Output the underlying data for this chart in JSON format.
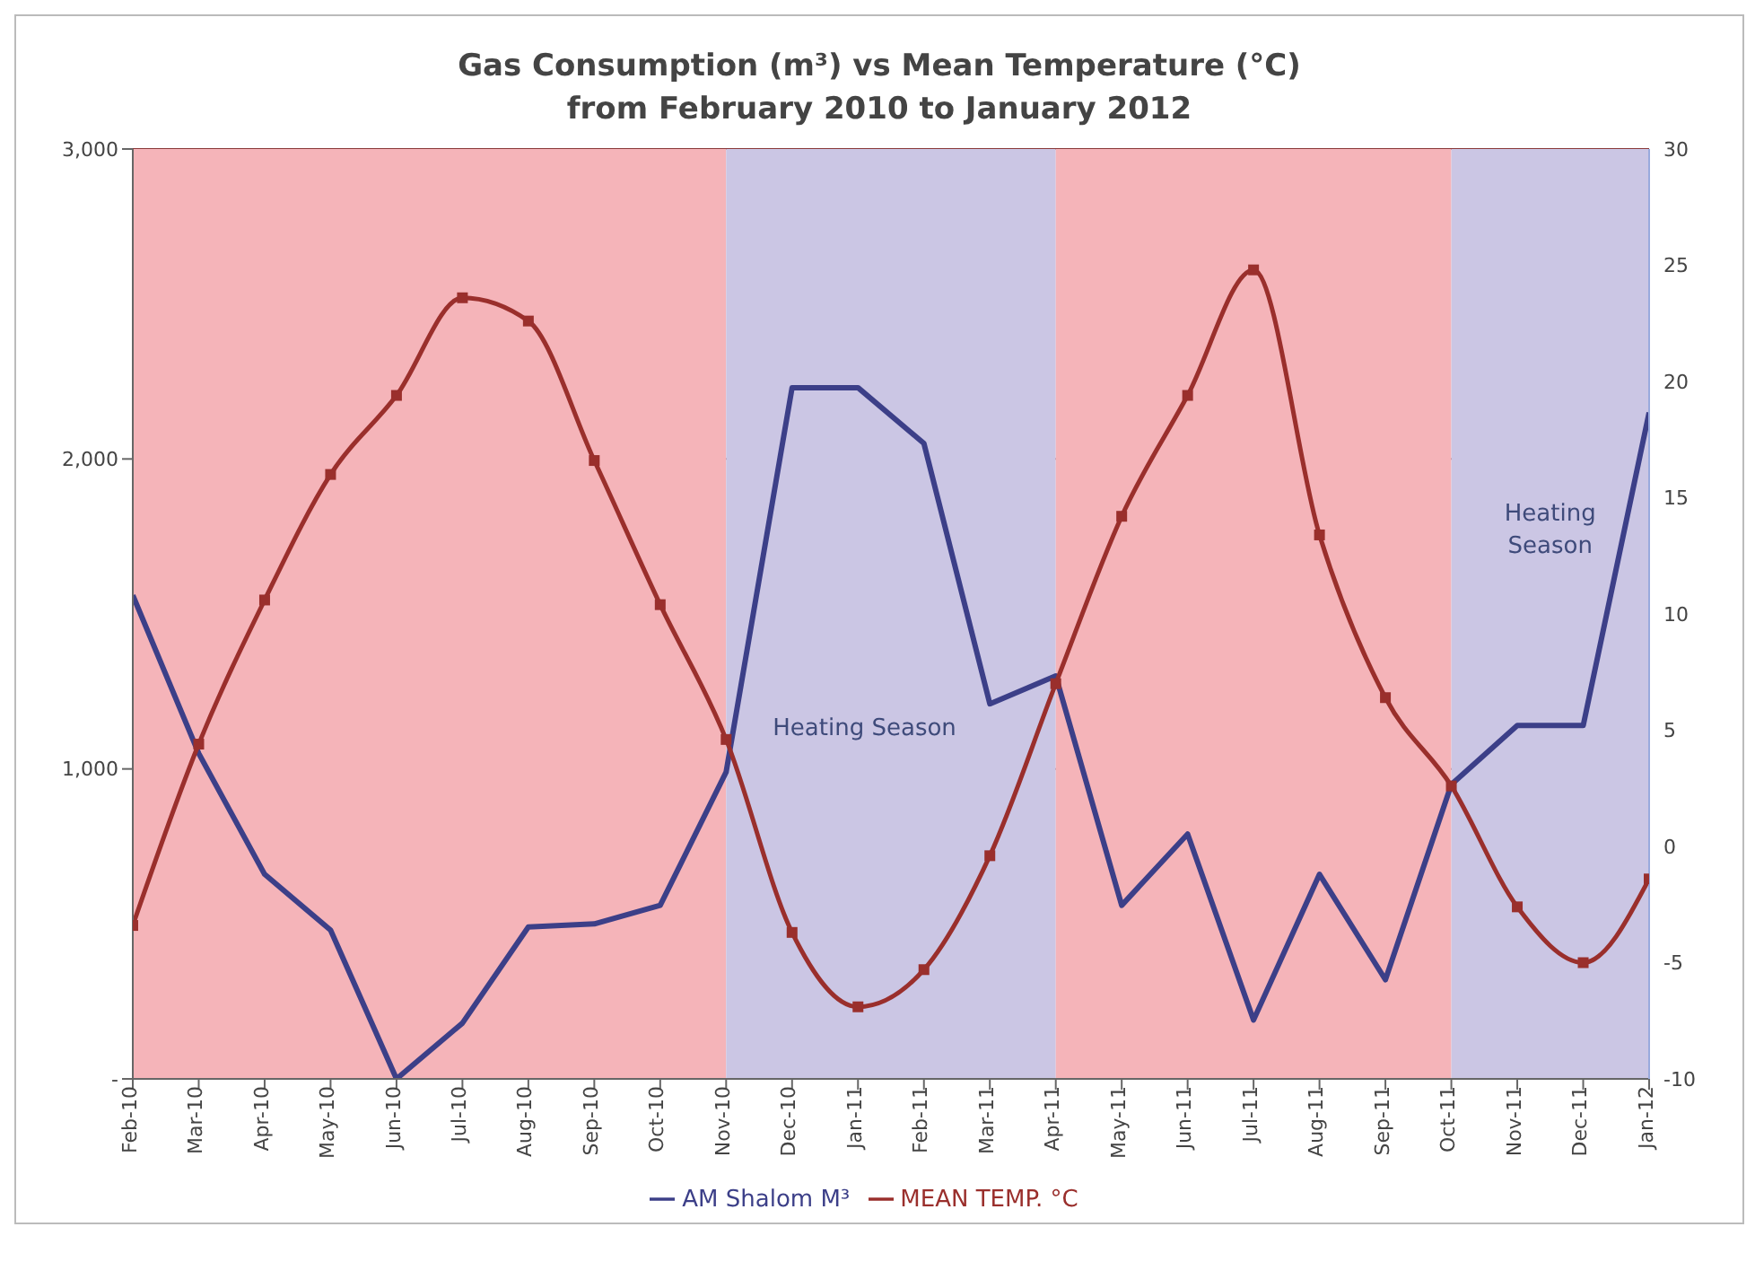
{
  "chart_data": {
    "type": "line",
    "title": "Gas Consumption (m³) vs Mean Temperature (°C)",
    "subtitle": "from February 2010 to January 2012",
    "categories": [
      "Feb-10",
      "Mar-10",
      "Apr-10",
      "May-10",
      "Jun-10",
      "Jul-10",
      "Aug-10",
      "Sep-10",
      "Oct-10",
      "Nov-10",
      "Dec-10",
      "Jan-11",
      "Feb-11",
      "Mar-11",
      "Apr-11",
      "May-11",
      "Jun-11",
      "Jul-11",
      "Aug-11",
      "Sep-11",
      "Oct-11",
      "Nov-11",
      "Dec-11",
      "Jan-12"
    ],
    "series": [
      {
        "name": "AM Shalom M³",
        "color": "#3c3f88",
        "marker": "none",
        "values": [
          1560,
          1050,
          660,
          480,
          0,
          180,
          490,
          500,
          560,
          990,
          2230,
          2230,
          2050,
          1210,
          1300,
          560,
          790,
          190,
          660,
          320,
          950,
          1140,
          1140,
          2150
        ]
      },
      {
        "name": "MEAN TEMP. °C",
        "color": "#9a2f2c",
        "marker": "square",
        "axis": "y2",
        "values": [
          -3.4,
          4.4,
          10.6,
          16,
          19.4,
          23.6,
          22.6,
          16.6,
          10.4,
          4.6,
          -3.7,
          -6.9,
          -5.3,
          -0.4,
          7,
          14.2,
          19.4,
          24.8,
          13.4,
          6.4,
          2.6,
          -2.6,
          -5,
          -1.4
        ]
      }
    ],
    "ylim": [
      0,
      3000
    ],
    "yticks": [
      {
        "value": 0,
        "label": "-"
      },
      {
        "value": 1000,
        "label": "1,000"
      },
      {
        "value": 2000,
        "label": "2,000"
      },
      {
        "value": 3000,
        "label": "3,000"
      }
    ],
    "y2lim": [
      -10,
      30
    ],
    "y2ticks": [
      -10,
      -5,
      0,
      5,
      10,
      15,
      20,
      25,
      30
    ],
    "bands": [
      {
        "axis": "x",
        "from": "Feb-10",
        "to": "Nov-10",
        "color": "#f5b4b9"
      },
      {
        "axis": "x",
        "from": "Nov-10",
        "to": "Apr-11",
        "label": "Heating Season",
        "color": "#cbc6e4"
      },
      {
        "axis": "x",
        "from": "Apr-11",
        "to": "Oct-11",
        "color": "#f5b4b9"
      },
      {
        "axis": "x",
        "from": "Oct-11",
        "to": "Jan-12",
        "label": "Heating Season",
        "color": "#cbc6e4"
      }
    ],
    "grid": "y",
    "legend": "bottom"
  }
}
